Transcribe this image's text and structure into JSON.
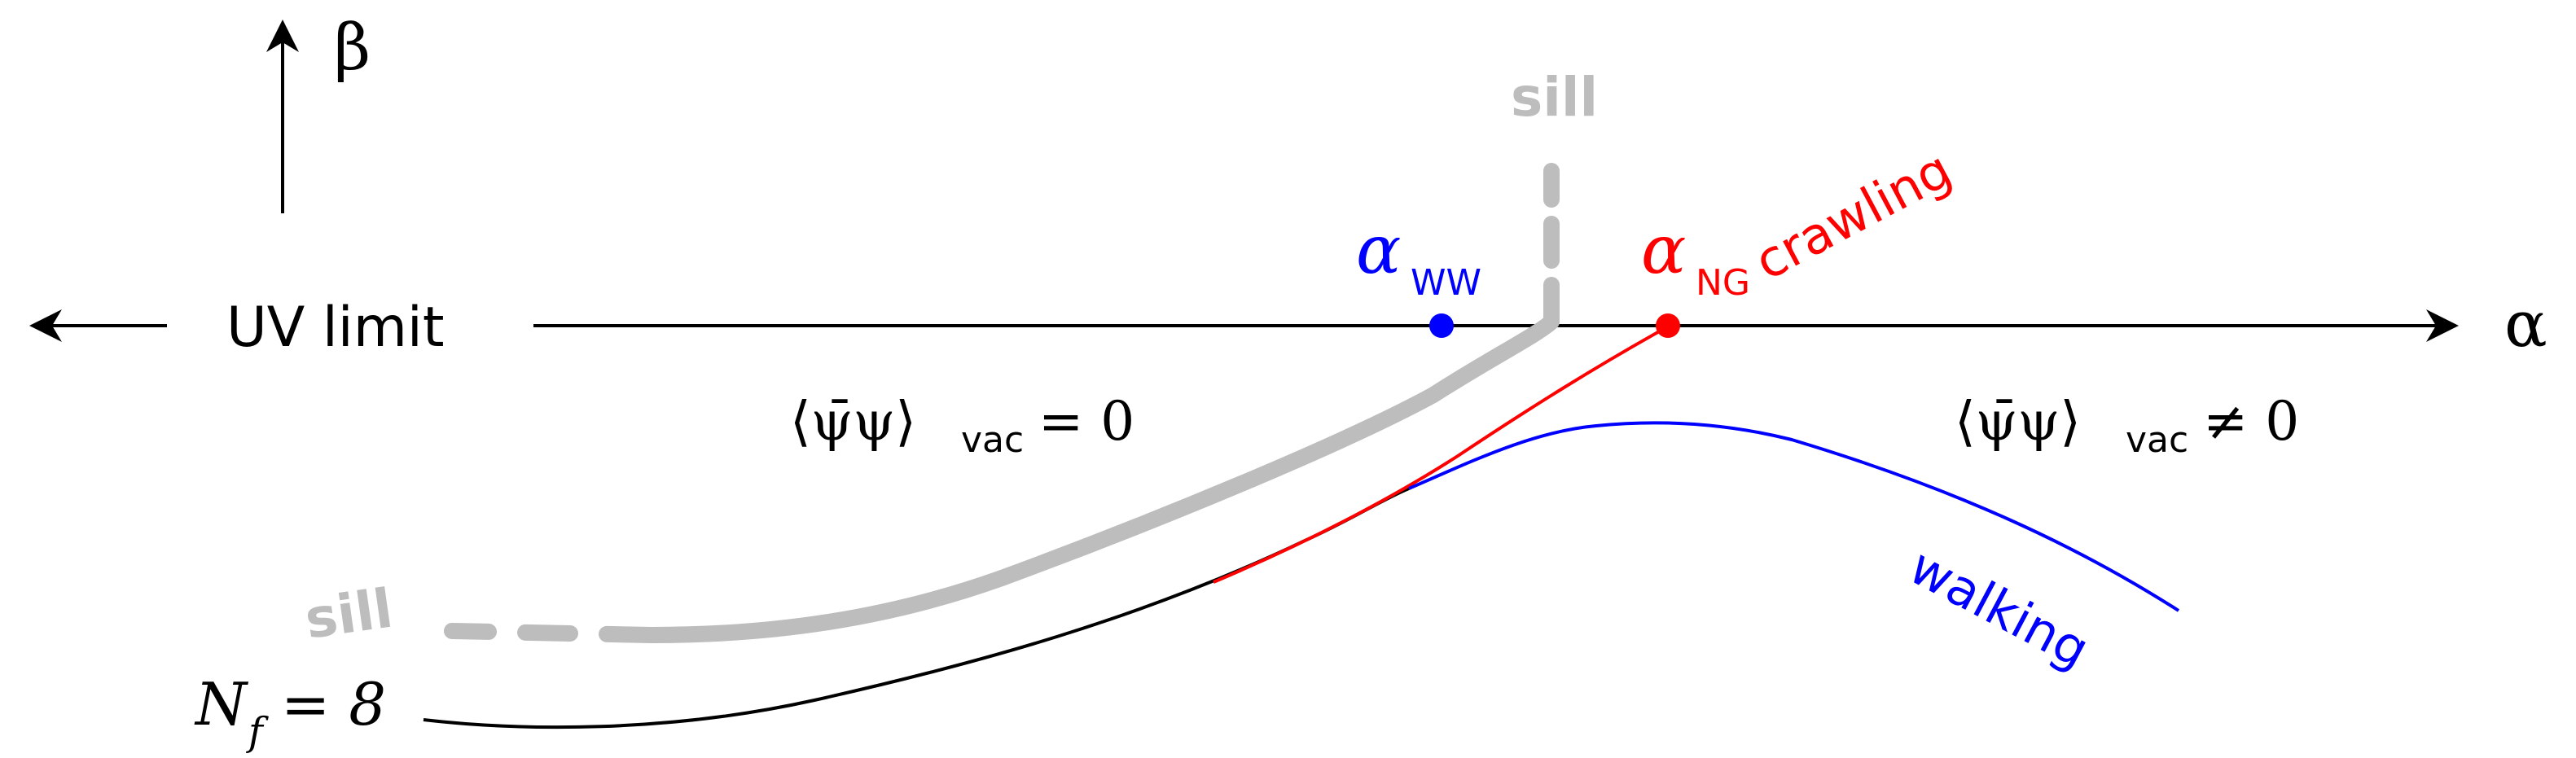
{
  "axes": {
    "beta_label": "β",
    "alpha_label": "α",
    "uv_limit_label": "UV limit"
  },
  "labels": {
    "sill_top": "sill",
    "sill_left": "sill",
    "crawling": "crawling",
    "walking": "walking",
    "nf_label": "N",
    "nf_subscript": "f",
    "nf_value": "= 8",
    "alpha_ww_symbol": "α",
    "alpha_ww_subscript": "WW",
    "alpha_ng_symbol": "α",
    "alpha_ng_subscript": "NG",
    "condensate_left": "⟨ψ̄ψ⟩",
    "condensate_left_sub": "vac",
    "condensate_left_rel": "= 0",
    "condensate_right": "⟨ψ̄ψ⟩",
    "condensate_right_sub": "vac",
    "condensate_right_rel": "≠ 0"
  },
  "colors": {
    "axis": "#000000",
    "sill": "#bdbdbd",
    "crawling": "#ff0000",
    "walking": "#0000ff",
    "nf_curve": "#000000",
    "alpha_ww": "#0000ff",
    "alpha_ng": "#ff0000"
  }
}
